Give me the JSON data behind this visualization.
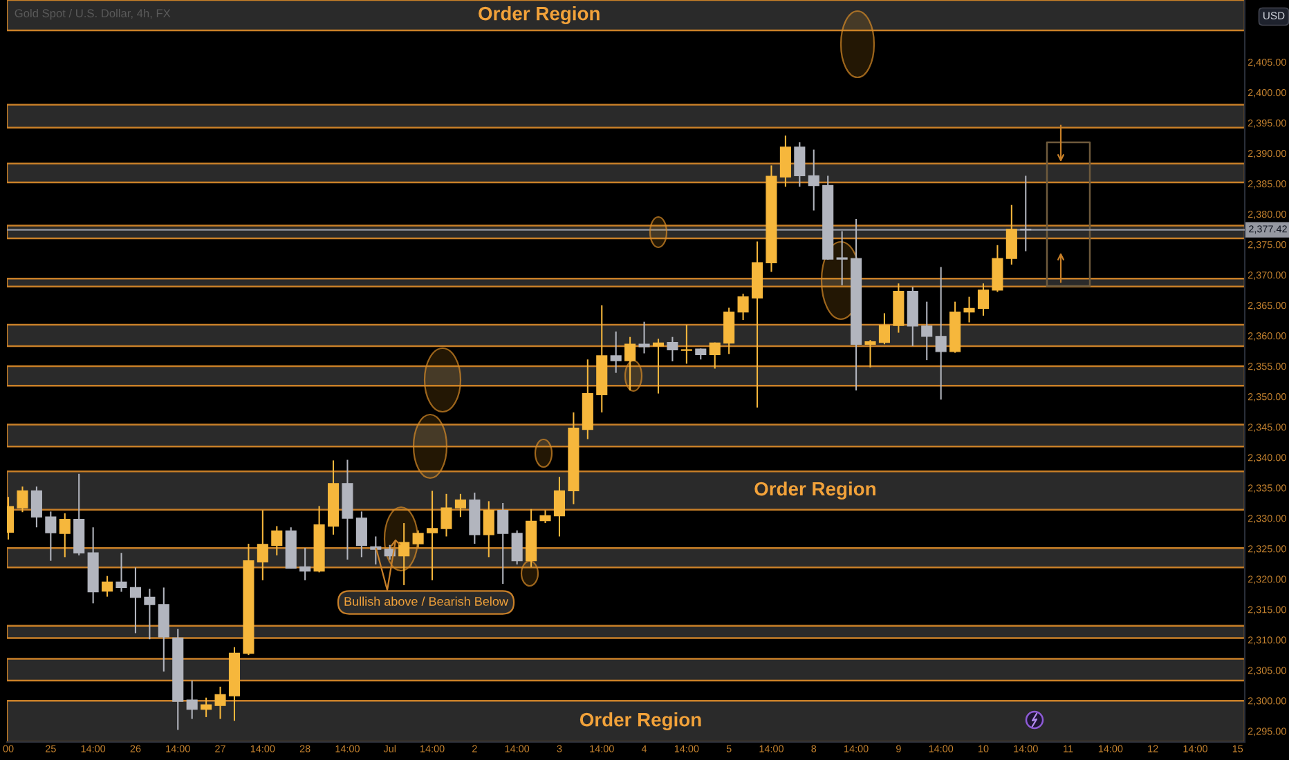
{
  "chart_data": {
    "type": "candlestick",
    "title": "Gold Spot / U.S. Dollar, 4h, FX",
    "ylabel": "USD",
    "categories": [
      "00",
      null,
      null,
      "25",
      null,
      null,
      "14:00",
      null,
      null,
      "26",
      null,
      null,
      "14:00",
      null,
      null,
      "27",
      null,
      null,
      "14:00",
      null,
      null,
      "28",
      null,
      null,
      "14:00",
      null,
      null,
      "Jul",
      null,
      null,
      "14:00",
      null,
      null,
      "2",
      null,
      null,
      "14:00",
      null,
      null,
      "3",
      null,
      null,
      "14:00",
      null,
      null,
      "4",
      null,
      null,
      "14:00",
      null,
      null,
      "5",
      null,
      null,
      "14:00",
      null,
      null,
      "8",
      null,
      null,
      "14:00",
      null,
      null,
      "9",
      null,
      null,
      "14:00",
      null,
      null,
      "10",
      null,
      null,
      "14:00",
      null,
      null,
      "11",
      null,
      null,
      "14:00",
      null,
      null,
      "12",
      null,
      null,
      "14:00",
      null,
      null,
      "15"
    ],
    "ohlc": [
      [
        2327.7,
        2333.5,
        2326.5,
        2331.9
      ],
      [
        2331.7,
        2335.2,
        2331.0,
        2334.5
      ],
      [
        2334.5,
        2335.2,
        2328.5,
        2330.2
      ],
      [
        2330.2,
        2331.1,
        2323.0,
        2327.6
      ],
      [
        2327.5,
        2330.8,
        2323.6,
        2329.8
      ],
      [
        2329.8,
        2337.3,
        2323.9,
        2324.3
      ],
      [
        2324.3,
        2328.5,
        2316.0,
        2317.9
      ],
      [
        2318.0,
        2320.5,
        2317.1,
        2319.5
      ],
      [
        2319.5,
        2324.3,
        2317.9,
        2318.6
      ],
      [
        2318.6,
        2321.9,
        2311.1,
        2317.0
      ],
      [
        2317.0,
        2318.4,
        2310.1,
        2315.8
      ],
      [
        2315.8,
        2318.6,
        2304.8,
        2310.5
      ],
      [
        2310.3,
        2311.8,
        2295.2,
        2299.9
      ],
      [
        2300.1,
        2303.3,
        2297.0,
        2298.6
      ],
      [
        2298.6,
        2300.5,
        2297.3,
        2299.3
      ],
      [
        2299.2,
        2302.3,
        2297.0,
        2301.0
      ],
      [
        2300.8,
        2308.8,
        2296.7,
        2307.8
      ],
      [
        2307.8,
        2325.8,
        2307.5,
        2323.0
      ],
      [
        2322.8,
        2331.3,
        2319.8,
        2325.7
      ],
      [
        2325.5,
        2328.7,
        2323.9,
        2327.9
      ],
      [
        2327.9,
        2328.5,
        2321.7,
        2321.8
      ],
      [
        2322.0,
        2325.1,
        2319.8,
        2321.3
      ],
      [
        2321.3,
        2332.0,
        2321.1,
        2328.9
      ],
      [
        2328.7,
        2339.5,
        2327.3,
        2335.7
      ],
      [
        2335.7,
        2339.6,
        2323.2,
        2330.0
      ],
      [
        2330.0,
        2331.1,
        2323.6,
        2325.5
      ],
      [
        2325.3,
        2327.0,
        2322.4,
        2324.9
      ],
      [
        2324.9,
        2325.6,
        2323.2,
        2323.8
      ],
      [
        2323.8,
        2329.2,
        2319.0,
        2326.0
      ],
      [
        2325.8,
        2328.0,
        2325.2,
        2327.5
      ],
      [
        2327.6,
        2334.5,
        2319.8,
        2328.3
      ],
      [
        2328.3,
        2334.0,
        2327.0,
        2331.7
      ],
      [
        2331.7,
        2334.0,
        2330.2,
        2333.0
      ],
      [
        2333.0,
        2334.2,
        2325.8,
        2327.3
      ],
      [
        2327.3,
        2332.8,
        2323.6,
        2331.3
      ],
      [
        2331.3,
        2332.5,
        2319.2,
        2327.5
      ],
      [
        2327.5,
        2328.0,
        2322.4,
        2323.0
      ],
      [
        2323.0,
        2331.5,
        2322.0,
        2329.5
      ],
      [
        2329.6,
        2331.3,
        2329.2,
        2330.4
      ],
      [
        2330.4,
        2336.8,
        2327.0,
        2334.5
      ],
      [
        2334.5,
        2347.4,
        2332.3,
        2344.8
      ],
      [
        2344.6,
        2356.1,
        2343.0,
        2350.5
      ],
      [
        2350.3,
        2365.0,
        2347.4,
        2356.7
      ],
      [
        2356.7,
        2360.7,
        2353.9,
        2355.9
      ],
      [
        2355.9,
        2359.8,
        2351.0,
        2358.6
      ],
      [
        2358.6,
        2362.3,
        2357.1,
        2358.2
      ],
      [
        2358.3,
        2359.5,
        2350.5,
        2358.8
      ],
      [
        2358.9,
        2359.8,
        2355.8,
        2357.7
      ],
      [
        2357.6,
        2361.8,
        2355.4,
        2357.7
      ],
      [
        2357.8,
        2357.9,
        2356.1,
        2356.9
      ],
      [
        2356.9,
        2358.9,
        2354.6,
        2358.8
      ],
      [
        2358.8,
        2364.6,
        2357.0,
        2363.9
      ],
      [
        2363.9,
        2366.9,
        2362.6,
        2366.4
      ],
      [
        2366.2,
        2375.5,
        2348.2,
        2372.0
      ],
      [
        2372.0,
        2388.0,
        2370.5,
        2386.2
      ],
      [
        2386.1,
        2392.9,
        2384.5,
        2391.0
      ],
      [
        2391.0,
        2391.8,
        2384.5,
        2386.3
      ],
      [
        2386.3,
        2390.6,
        2380.6,
        2384.7
      ],
      [
        2384.7,
        2386.3,
        2372.5,
        2372.6
      ],
      [
        2372.8,
        2377.2,
        2368.3,
        2372.6
      ],
      [
        2372.7,
        2379.2,
        2351.0,
        2358.6
      ],
      [
        2358.6,
        2359.3,
        2354.8,
        2359.0
      ],
      [
        2358.9,
        2363.7,
        2358.6,
        2361.7
      ],
      [
        2361.7,
        2368.6,
        2360.5,
        2367.3
      ],
      [
        2367.3,
        2368.0,
        2358.3,
        2361.6
      ],
      [
        2361.6,
        2365.6,
        2356.0,
        2359.9
      ],
      [
        2359.9,
        2371.3,
        2349.5,
        2357.4
      ],
      [
        2357.4,
        2365.6,
        2357.2,
        2363.9
      ],
      [
        2363.9,
        2366.4,
        2362.2,
        2364.5
      ],
      [
        2364.5,
        2368.6,
        2363.3,
        2367.5
      ],
      [
        2367.5,
        2374.9,
        2367.2,
        2372.7
      ],
      [
        2372.7,
        2381.5,
        2371.7,
        2377.5
      ],
      [
        2377.5,
        2386.3,
        2373.9,
        2377.42
      ],
      null,
      null,
      null,
      null,
      null,
      null,
      null,
      null,
      null,
      null,
      null,
      null,
      null,
      null,
      null
    ],
    "colors": [
      "#f6b73c",
      "#f6b73c",
      "#b2b5be",
      "#b2b5be",
      "#f6b73c",
      "#b2b5be",
      "#b2b5be",
      "#f6b73c",
      "#b2b5be",
      "#b2b5be",
      "#b2b5be",
      "#b2b5be",
      "#b2b5be",
      "#b2b5be",
      "#f6b73c",
      "#f6b73c",
      "#f6b73c",
      "#f6b73c",
      "#f6b73c",
      "#f6b73c",
      "#b2b5be",
      "#b2b5be",
      "#f6b73c",
      "#f6b73c",
      "#b2b5be",
      "#b2b5be",
      "#b2b5be",
      "#b2b5be",
      "#f6b73c",
      "#f6b73c",
      "#f6b73c",
      "#f6b73c",
      "#f6b73c",
      "#b2b5be",
      "#f6b73c",
      "#b2b5be",
      "#b2b5be",
      "#f6b73c",
      "#f6b73c",
      "#f6b73c",
      "#f6b73c",
      "#f6b73c",
      "#f6b73c",
      "#b2b5be",
      "#f6b73c",
      "#b2b5be",
      "#f6b73c",
      "#b2b5be",
      "#f6b73c",
      "#b2b5be",
      "#f6b73c",
      "#f6b73c",
      "#f6b73c",
      "#f6b73c",
      "#f6b73c",
      "#f6b73c",
      "#b2b5be",
      "#b2b5be",
      "#b2b5be",
      "#b2b5be",
      "#b2b5be",
      "#f6b73c",
      "#f6b73c",
      "#f6b73c",
      "#b2b5be",
      "#b2b5be",
      "#b2b5be",
      "#f6b73c",
      "#f6b73c",
      "#f6b73c",
      "#f6b73c",
      "#f6b73c",
      "#b2b5be",
      null,
      null,
      null,
      null,
      null,
      null,
      null,
      null,
      null,
      null,
      null,
      null,
      null,
      null,
      null
    ],
    "ylim": [
      2293.2,
      2415.2
    ],
    "yticks": [
      {
        "value": 2295,
        "label": "2,295.00"
      },
      {
        "value": 2300,
        "label": "2,300.00"
      },
      {
        "value": 2305,
        "label": "2,305.00"
      },
      {
        "value": 2310,
        "label": "2,310.00"
      },
      {
        "value": 2315,
        "label": "2,315.00"
      },
      {
        "value": 2320,
        "label": "2,320.00"
      },
      {
        "value": 2325,
        "label": "2,325.00"
      },
      {
        "value": 2330,
        "label": "2,330.00"
      },
      {
        "value": 2335,
        "label": "2,335.00"
      },
      {
        "value": 2340,
        "label": "2,340.00"
      },
      {
        "value": 2345,
        "label": "2,345.00"
      },
      {
        "value": 2350,
        "label": "2,350.00"
      },
      {
        "value": 2355,
        "label": "2,355.00"
      },
      {
        "value": 2360,
        "label": "2,360.00"
      },
      {
        "value": 2365,
        "label": "2,365.00"
      },
      {
        "value": 2370,
        "label": "2,370.00"
      },
      {
        "value": 2375,
        "label": "2,375.00"
      },
      {
        "value": 2380,
        "label": "2,380.00"
      },
      {
        "value": 2385,
        "label": "2,385.00"
      },
      {
        "value": 2390,
        "label": "2,390.00"
      },
      {
        "value": 2395,
        "label": "2,395.00"
      },
      {
        "value": 2400,
        "label": "2,400.00"
      },
      {
        "value": 2405,
        "label": "2,405.00"
      }
    ],
    "ref_lines": [
      {
        "axis": "y",
        "value": 2377.42,
        "label": "2,377.42",
        "color": "#9598a1"
      }
    ],
    "bands": [
      {
        "axis": "y",
        "from": 2410.2,
        "to": 2415.2,
        "label": "Order Region",
        "color": "#2a2a2a"
      },
      {
        "axis": "y",
        "from": 2394.2,
        "to": 2398.0,
        "color": "#2a2a2a"
      },
      {
        "axis": "y",
        "from": 2385.2,
        "to": 2388.3,
        "color": "#2a2a2a"
      },
      {
        "axis": "y",
        "from": 2376.0,
        "to": 2378.1,
        "color": "#2a2a2a"
      },
      {
        "axis": "y",
        "from": 2368.1,
        "to": 2369.4,
        "color": "#2a2a2a"
      },
      {
        "axis": "y",
        "from": 2358.3,
        "to": 2361.8,
        "color": "#2a2a2a"
      },
      {
        "axis": "y",
        "from": 2351.8,
        "to": 2355.0,
        "color": "#2a2a2a"
      },
      {
        "axis": "y",
        "from": 2341.8,
        "to": 2345.4,
        "color": "#2a2a2a"
      },
      {
        "axis": "y",
        "from": 2331.4,
        "to": 2337.7,
        "label": "Order Region",
        "color": "#2a2a2a"
      },
      {
        "axis": "y",
        "from": 2321.9,
        "to": 2325.1,
        "color": "#2a2a2a"
      },
      {
        "axis": "y",
        "from": 2310.3,
        "to": 2312.3,
        "color": "#2a2a2a"
      },
      {
        "axis": "y",
        "from": 2303.3,
        "to": 2306.9,
        "color": "#2a2a2a"
      },
      {
        "axis": "y",
        "from": 2293.2,
        "to": 2300.0,
        "label": "Order Region",
        "color": "#2a2a2a"
      }
    ],
    "annotations": [
      "Bullish above / Bearish Below"
    ],
    "grid": false
  }
}
